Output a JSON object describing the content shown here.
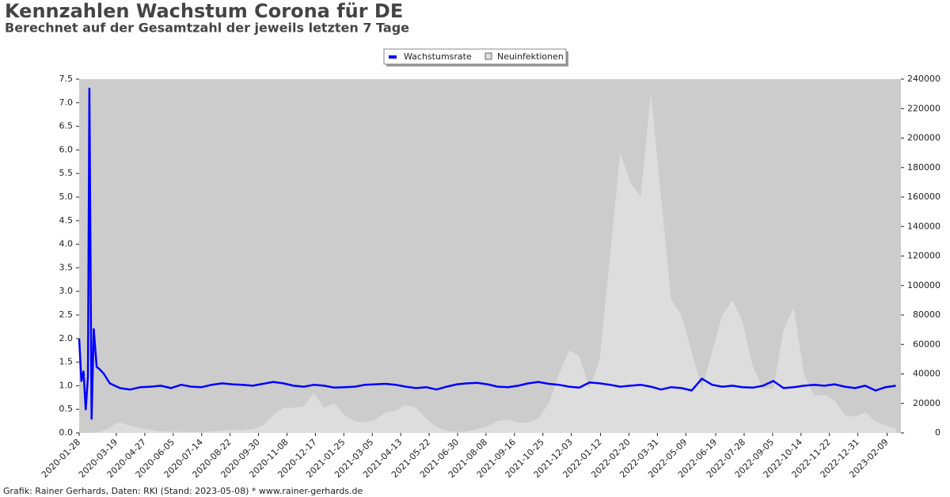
{
  "chart_data": {
    "type": "line",
    "title": "Kennzahlen Wachstum Corona für DE",
    "subtitle": "Berechnet auf der Gesamtzahl der jeweils letzten 7 Tage",
    "footer": "Grafik: Rainer Gerhards, Daten: RKI (Stand: 2023-05-08) * www.rainer-gerhards.de",
    "x": [
      "2020-01-28",
      "2020-01-31",
      "2020-02-03",
      "2020-02-06",
      "2020-02-09",
      "2020-02-11",
      "2020-02-14",
      "2020-02-17",
      "2020-02-21",
      "2020-02-25",
      "2020-03-02",
      "2020-03-10",
      "2020-03-17",
      "2020-03-24",
      "2020-04-07",
      "2020-04-21",
      "2020-05-05",
      "2020-05-19",
      "2020-06-02",
      "2020-06-16",
      "2020-06-30",
      "2020-07-14",
      "2020-07-28",
      "2020-08-11",
      "2020-08-25",
      "2020-09-08",
      "2020-09-22",
      "2020-10-06",
      "2020-10-20",
      "2020-11-03",
      "2020-11-17",
      "2020-12-01",
      "2020-12-15",
      "2020-12-29",
      "2021-01-12",
      "2021-01-26",
      "2021-02-09",
      "2021-02-23",
      "2021-03-09",
      "2021-03-23",
      "2021-04-06",
      "2021-04-20",
      "2021-05-04",
      "2021-05-18",
      "2021-06-01",
      "2021-06-15",
      "2021-06-29",
      "2021-07-13",
      "2021-07-27",
      "2021-08-10",
      "2021-08-24",
      "2021-09-07",
      "2021-09-21",
      "2021-10-05",
      "2021-10-19",
      "2021-11-02",
      "2021-11-16",
      "2021-11-30",
      "2021-12-14",
      "2021-12-28",
      "2022-01-11",
      "2022-01-25",
      "2022-02-08",
      "2022-02-22",
      "2022-03-08",
      "2022-03-22",
      "2022-04-05",
      "2022-04-19",
      "2022-05-03",
      "2022-05-17",
      "2022-05-31",
      "2022-06-14",
      "2022-06-28",
      "2022-07-12",
      "2022-07-26",
      "2022-08-09",
      "2022-08-23",
      "2022-09-06",
      "2022-09-20",
      "2022-10-04",
      "2022-10-18",
      "2022-11-01",
      "2022-11-15",
      "2022-11-29",
      "2022-12-13",
      "2022-12-27",
      "2023-01-10",
      "2023-01-24",
      "2023-02-07",
      "2023-02-21"
    ],
    "series": [
      {
        "name": "Wachstumsrate",
        "color": "#0000ff",
        "axis": "y",
        "values": [
          2.0,
          1.1,
          1.3,
          0.5,
          1.2,
          7.3,
          0.3,
          2.2,
          1.4,
          1.35,
          1.25,
          1.05,
          1.0,
          0.95,
          0.92,
          0.97,
          0.98,
          1.0,
          0.95,
          1.02,
          0.98,
          0.97,
          1.02,
          1.05,
          1.03,
          1.02,
          1.0,
          1.04,
          1.08,
          1.05,
          1.0,
          0.98,
          1.02,
          1.0,
          0.96,
          0.97,
          0.98,
          1.02,
          1.03,
          1.04,
          1.02,
          0.98,
          0.95,
          0.97,
          0.92,
          0.98,
          1.03,
          1.05,
          1.06,
          1.03,
          0.98,
          0.97,
          1.0,
          1.05,
          1.08,
          1.04,
          1.02,
          0.98,
          0.96,
          1.07,
          1.05,
          1.02,
          0.98,
          1.0,
          1.02,
          0.98,
          0.92,
          0.97,
          0.95,
          0.9,
          1.15,
          1.02,
          0.98,
          1.0,
          0.97,
          0.96,
          1.0,
          1.1,
          0.95,
          0.97,
          1.0,
          1.02,
          1.0,
          1.03,
          0.98,
          0.95,
          1.0,
          0.9,
          0.97,
          1.0
        ]
      },
      {
        "name": "Neuinfektionen",
        "color": "#dddddd",
        "axis": "y2",
        "values": [
          0,
          0,
          0,
          0,
          0,
          0,
          0,
          100,
          300,
          700,
          1500,
          3500,
          6000,
          7000,
          5000,
          3000,
          2000,
          1000,
          800,
          800,
          700,
          600,
          900,
          1500,
          2000,
          1800,
          2500,
          5000,
          12000,
          17000,
          17000,
          18000,
          27000,
          17000,
          20000,
          12000,
          8000,
          7000,
          9000,
          14000,
          15000,
          19000,
          17000,
          10000,
          4000,
          1500,
          700,
          1000,
          2500,
          4500,
          8000,
          9000,
          7000,
          7000,
          10000,
          20000,
          40000,
          56000,
          52000,
          30000,
          50000,
          120000,
          190000,
          170000,
          160000,
          230000,
          160000,
          90000,
          80000,
          55000,
          30000,
          55000,
          80000,
          90000,
          75000,
          45000,
          30000,
          30000,
          70000,
          85000,
          40000,
          25000,
          26000,
          22000,
          12000,
          11000,
          14000,
          8000,
          5000,
          3000
        ]
      }
    ],
    "xlim": [
      "2020-01-28",
      "2023-02-28"
    ],
    "xticks": [
      "2020-01-28",
      "2020-03-19",
      "2020-04-27",
      "2020-06-05",
      "2020-07-14",
      "2020-08-22",
      "2020-09-30",
      "2020-11-08",
      "2020-12-17",
      "2021-01-25",
      "2021-03-05",
      "2021-04-13",
      "2021-05-22",
      "2021-06-30",
      "2021-08-08",
      "2021-09-16",
      "2021-10-25",
      "2021-12-03",
      "2022-01-12",
      "2022-02-20",
      "2022-03-31",
      "2022-05-09",
      "2022-06-19",
      "2022-07-28",
      "2022-09-05",
      "2022-10-14",
      "2022-11-22",
      "2022-12-31",
      "2023-02-09"
    ],
    "ylim": [
      0,
      7.5
    ],
    "yticks": [
      {
        "value": 0,
        "label": "0.0"
      },
      0.5,
      {
        "value": 1,
        "label": "1.0"
      },
      1.5,
      {
        "value": 2,
        "label": "2.0"
      },
      2.5,
      {
        "value": 3,
        "label": "3.0"
      },
      3.5,
      {
        "value": 4,
        "label": "4.0"
      },
      4.5,
      {
        "value": 5,
        "label": "5.0"
      },
      5.5,
      {
        "value": 6,
        "label": "6.0"
      },
      6.5,
      {
        "value": 7,
        "label": "7.0"
      },
      7.5
    ],
    "y2lim": [
      0,
      240000
    ],
    "y2ticks": [
      0,
      20000,
      40000,
      60000,
      80000,
      100000,
      120000,
      140000,
      160000,
      180000,
      200000,
      220000,
      240000
    ],
    "legend": "top"
  }
}
